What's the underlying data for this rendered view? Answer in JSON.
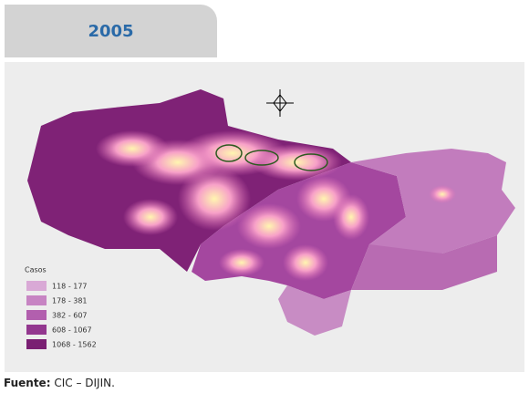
{
  "header": {
    "tab": "2005"
  },
  "map": {
    "legend": {
      "title": "Casos",
      "items": [
        {
          "label": "118 - 177",
          "color": "#d9a9d6"
        },
        {
          "label": "178 - 381",
          "color": "#c784c3"
        },
        {
          "label": "382 - 607",
          "color": "#b25fae"
        },
        {
          "label": "608 - 1067",
          "color": "#93378f"
        },
        {
          "label": "1068 - 1562",
          "color": "#7a1f73"
        }
      ]
    }
  },
  "footer": {
    "source_label": "Fuente:",
    "source": "CIC – DIJIN."
  }
}
